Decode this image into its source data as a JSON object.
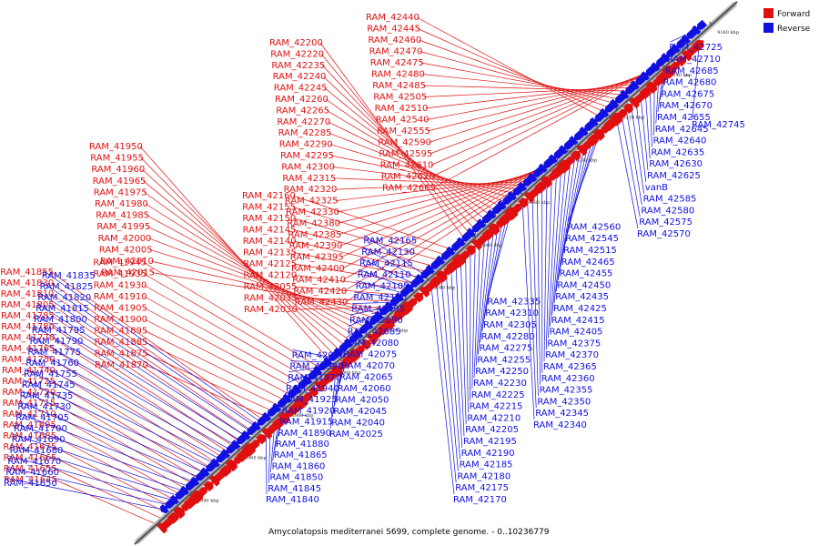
{
  "colors": {
    "forward": "#e01010",
    "reverse": "#1010e0",
    "backbone": "#808080",
    "text": "#000000"
  },
  "legend": {
    "forward_label": "Forward",
    "reverse_label": "Reverse"
  },
  "caption": "Amycolatopsis mediterranei S699, complete genome. - 0..10236779",
  "ticks": [
    "8940 kbp",
    "8960 kbp",
    "8980 kbp",
    "9000 kbp",
    "9020 kbp",
    "9040 kbp",
    "9060 kbp",
    "9080 kbp",
    "9100 kbp",
    "9120 kbp",
    "9140 kbp",
    "9160 kbp"
  ],
  "forward_genes": [
    "RAM_41645",
    "RAM_41655",
    "RAM_41665",
    "RAM_41675",
    "RAM_41685",
    "RAM_41695",
    "RAM_41710",
    "RAM_41715",
    "RAM_41720",
    "RAM_41725",
    "RAM_41740",
    "RAM_41750",
    "RAM_41765",
    "RAM_41770",
    "RAM_41780",
    "RAM_41785",
    "RAM_41805",
    "RAM_41810",
    "RAM_41830",
    "RAM_41855",
    "RAM_41870",
    "RAM_41875",
    "RAM_41885",
    "RAM_41895",
    "RAM_41900",
    "RAM_41905",
    "RAM_41910",
    "RAM_41930",
    "RAM_41935",
    "RAM_41945",
    "RAM_41950",
    "RAM_41955",
    "RAM_41960",
    "RAM_41965",
    "RAM_41975",
    "RAM_41980",
    "RAM_41985",
    "RAM_41995",
    "RAM_42000",
    "RAM_42005",
    "RAM_42010",
    "RAM_42015",
    "RAM_42030",
    "RAM_42035",
    "RAM_42055",
    "RAM_42120",
    "RAM_42125",
    "RAM_42135",
    "RAM_42140",
    "RAM_42145",
    "RAM_42150",
    "RAM_42155",
    "RAM_42160",
    "RAM_42200",
    "RAM_42220",
    "RAM_42235",
    "RAM_42240",
    "RAM_42245",
    "RAM_42260",
    "RAM_42265",
    "RAM_42270",
    "RAM_42285",
    "RAM_42290",
    "RAM_42295",
    "RAM_42300",
    "RAM_42315",
    "RAM_42320",
    "RAM_42325",
    "RAM_42330",
    "RAM_42380",
    "RAM_42385",
    "RAM_42390",
    "RAM_42395",
    "RAM_42400",
    "RAM_42410",
    "RAM_42420",
    "RAM_42430",
    "RAM_42440",
    "RAM_42445",
    "RAM_42460",
    "RAM_42470",
    "RAM_42475",
    "RAM_42480",
    "RAM_42485",
    "RAM_42505",
    "RAM_42510",
    "RAM_42540",
    "RAM_42555",
    "RAM_42590",
    "RAM_42595",
    "RAM_42610",
    "RAM_42620",
    "RAM_42665"
  ],
  "reverse_genes": [
    "RAM_41650",
    "RAM_41660",
    "RAM_41670",
    "RAM_41680",
    "RAM_41690",
    "RAM_41700",
    "RAM_41705",
    "RAM_41730",
    "RAM_41735",
    "RAM_41745",
    "RAM_41755",
    "RAM_41760",
    "RAM_41775",
    "RAM_41790",
    "RAM_41795",
    "RAM_41800",
    "RAM_41815",
    "RAM_41820",
    "RAM_41825",
    "RAM_41835",
    "RAM_41840",
    "RAM_41845",
    "RAM_41850",
    "RAM_41860",
    "RAM_41865",
    "RAM_41880",
    "RAM_41890",
    "RAM_41915",
    "RAM_41920",
    "RAM_41925",
    "RAM_41940",
    "RAM_41970",
    "RAM_41990",
    "RAM_42020",
    "RAM_42025",
    "RAM_42040",
    "RAM_42045",
    "RAM_42050",
    "RAM_42060",
    "RAM_42065",
    "RAM_42070",
    "RAM_42075",
    "RAM_42080",
    "RAM_42085",
    "RAM_42090",
    "RAM_42095",
    "RAM_42100",
    "RAM_42105",
    "RAM_42110",
    "RAM_42115",
    "RAM_42130",
    "RAM_42165",
    "RAM_42170",
    "RAM_42175",
    "RAM_42180",
    "RAM_42185",
    "RAM_42190",
    "RAM_42195",
    "RAM_42205",
    "RAM_42210",
    "RAM_42215",
    "RAM_42225",
    "RAM_42230",
    "RAM_42250",
    "RAM_42255",
    "RAM_42275",
    "RAM_42280",
    "RAM_42305",
    "RAM_42310",
    "RAM_42335",
    "RAM_42340",
    "RAM_42345",
    "RAM_42350",
    "RAM_42355",
    "RAM_42360",
    "RAM_42365",
    "RAM_42370",
    "RAM_42375",
    "RAM_42405",
    "RAM_42415",
    "RAM_42425",
    "RAM_42435",
    "RAM_42450",
    "RAM_42455",
    "RAM_42465",
    "RAM_42515",
    "RAM_42545",
    "RAM_42560",
    "RAM_42570",
    "RAM_42575",
    "RAM_42580",
    "RAM_42585",
    "vanB",
    "RAM_42625",
    "RAM_42630",
    "RAM_42635",
    "RAM_42640",
    "RAM_42645",
    "RAM_42655",
    "RAM_42670",
    "RAM_42675",
    "RAM_42680",
    "RAM_42685",
    "RAM_42710",
    "RAM_42725",
    "RAM_42745"
  ]
}
